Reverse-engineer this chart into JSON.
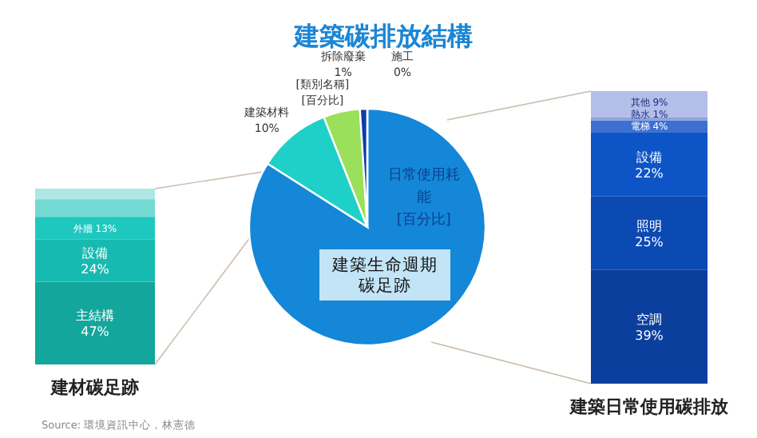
{
  "chart_data": [
    {
      "type": "bar",
      "stacked": true,
      "categories": [
        null
      ],
      "xlabel": "建材碳足跡",
      "annotations": [
        "Source: 環境資訊中心，林憲德"
      ],
      "series": [
        {
          "name": "主結構",
          "color": "#13a69c",
          "values": [
            47
          ],
          "value_labels": [
            "47%"
          ]
        },
        {
          "name": "設備",
          "color": "#17bab0",
          "values": [
            24
          ],
          "value_labels": [
            "24%"
          ]
        },
        {
          "name": "外牆",
          "color": "#1fc8bf",
          "values": [
            13
          ],
          "value_labels": [
            "13%"
          ]
        },
        {
          "color": "#74d8d3",
          "values": [
            10
          ],
          "value_labels": [
            null
          ]
        },
        {
          "color": "#aee7e4",
          "values": [
            6
          ],
          "value_labels": [
            null
          ]
        }
      ]
    },
    {
      "type": "pie",
      "title": "建築碳排放結構",
      "categories": [
        "日常使用耗能",
        "建築材料",
        "[類別名稱]",
        "拆除廢棄",
        "施工"
      ],
      "values": [
        84,
        10,
        5,
        1,
        0
      ],
      "value_labels": [
        "[百分比]",
        "10%",
        "[百分比]",
        "1%",
        "0%"
      ],
      "colors": [
        "#1487d8",
        "#1fd0c8",
        "#9be05a",
        "#0d3ca8",
        "#2a8de0"
      ],
      "annotations": [
        "建築生命週期碳足跡"
      ]
    },
    {
      "type": "bar",
      "stacked": true,
      "categories": [
        null
      ],
      "xlabel": "建築日常使用碳排放",
      "series": [
        {
          "name": "空調",
          "color": "#0b3f9e",
          "values": [
            39
          ],
          "value_labels": [
            "39%"
          ]
        },
        {
          "name": "照明",
          "color": "#0c4ab3",
          "values": [
            25
          ],
          "value_labels": [
            "25%"
          ]
        },
        {
          "name": "設備",
          "color": "#0d55c6",
          "values": [
            22
          ],
          "value_labels": [
            "22%"
          ]
        },
        {
          "name": "電梯",
          "color": "#3d6fd2",
          "values": [
            4
          ],
          "value_labels": [
            "4%"
          ]
        },
        {
          "name": "熱水",
          "color": "#8da2e2",
          "values": [
            1
          ],
          "value_labels": [
            "1%"
          ]
        },
        {
          "name": "其他",
          "color": "#b3bee9",
          "values": [
            9
          ],
          "value_labels": [
            "9%"
          ]
        }
      ]
    }
  ]
}
